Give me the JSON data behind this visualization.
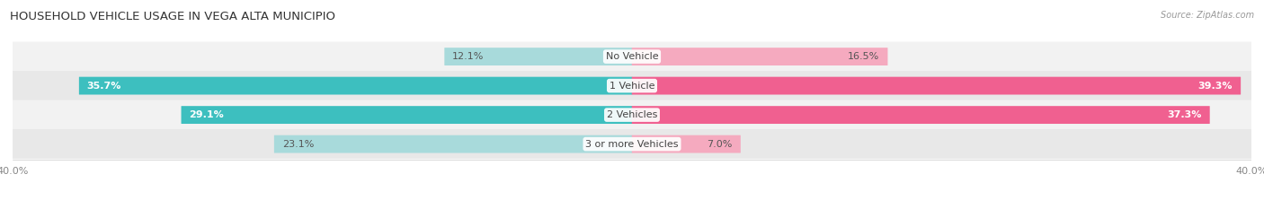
{
  "title": "HOUSEHOLD VEHICLE USAGE IN VEGA ALTA MUNICIPIO",
  "source": "Source: ZipAtlas.com",
  "categories": [
    "No Vehicle",
    "1 Vehicle",
    "2 Vehicles",
    "3 or more Vehicles"
  ],
  "owner_values": [
    12.1,
    35.7,
    29.1,
    23.1
  ],
  "renter_values": [
    16.5,
    39.3,
    37.3,
    7.0
  ],
  "owner_color_full": "#3DBFBF",
  "renter_color_full": "#F06090",
  "owner_color_light": "#A8DADB",
  "renter_color_light": "#F5AABF",
  "row_bg_even": "#F2F2F2",
  "row_bg_odd": "#E8E8E8",
  "axis_max": 40.0,
  "label_fontsize": 8.0,
  "title_fontsize": 9.5,
  "source_fontsize": 7.0,
  "background_color": "#FFFFFF",
  "pct_color_dark": "#666666",
  "pct_color_white": "#FFFFFF",
  "cat_label_fontsize": 8.0,
  "tick_fontsize": 8.0
}
